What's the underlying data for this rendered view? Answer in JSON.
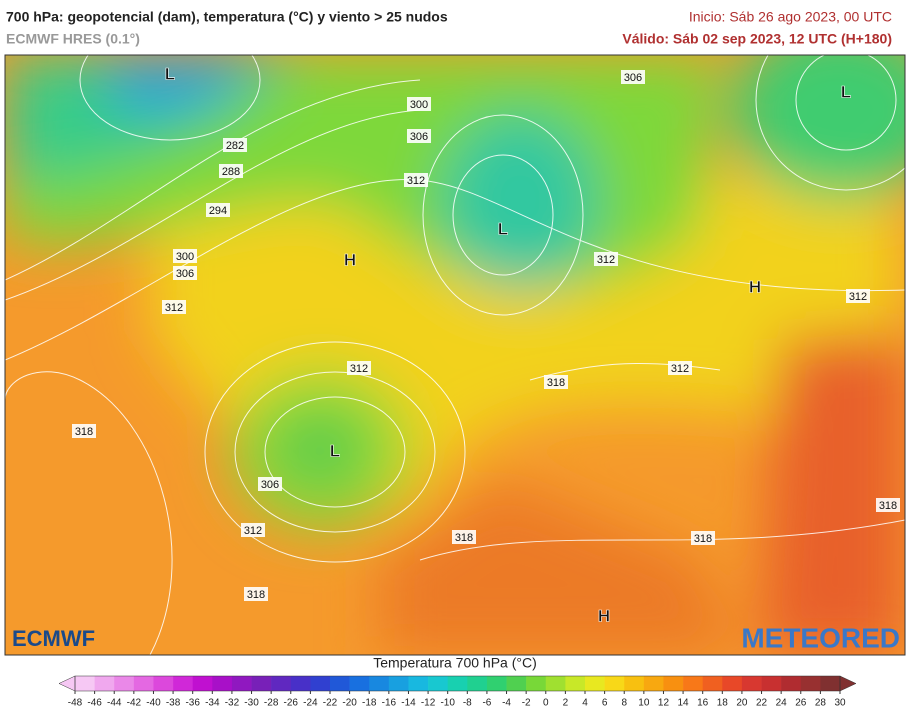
{
  "header": {
    "title": "700 hPa: geopotencial (dam), temperatura (°C) y viento > 25 nudos",
    "model": "ECMWF HRES (0.1°)",
    "init": "Inicio: Sáb 26 ago 2023, 00 UTC",
    "valid": "Válido: Sáb 02 sep 2023, 12 UTC (H+180)"
  },
  "map": {
    "contour_labels": [
      300,
      306,
      282,
      288,
      294,
      300,
      306,
      312,
      312,
      306,
      312,
      312,
      318,
      312,
      312,
      318,
      306,
      312,
      318,
      318,
      318,
      318
    ],
    "pressure_centers": [
      "L",
      "L",
      "L",
      "H",
      "H",
      "L",
      "H"
    ],
    "logos": [
      "ECMWF",
      "METEORED"
    ]
  },
  "colorbar": {
    "title": "Temperatura 700 hPa (°C)",
    "ticks": [
      -48,
      -46,
      -44,
      -42,
      -40,
      -38,
      -36,
      -34,
      -32,
      -30,
      -28,
      -26,
      -24,
      -22,
      -20,
      -18,
      -16,
      -14,
      -12,
      -10,
      -8,
      -6,
      -4,
      -2,
      0,
      2,
      4,
      6,
      8,
      10,
      12,
      14,
      16,
      18,
      20,
      22,
      24,
      26,
      28,
      30
    ],
    "colors": [
      "#f6c8f4",
      "#f0a8ee",
      "#ea88e8",
      "#e468e2",
      "#dc48dc",
      "#d028d8",
      "#c010d0",
      "#a810c8",
      "#9018c0",
      "#7820b8",
      "#6028c0",
      "#4830c8",
      "#3040d0",
      "#2058d8",
      "#1870e0",
      "#1888e0",
      "#18a0e0",
      "#18b8e0",
      "#18c8d0",
      "#18d0b0",
      "#20d090",
      "#30d070",
      "#50d050",
      "#78d838",
      "#a0e030",
      "#c8e828",
      "#e8e820",
      "#f8d818",
      "#f8c010",
      "#f8a810",
      "#f89010",
      "#f87818",
      "#f06020",
      "#e84828",
      "#d83830",
      "#c83030",
      "#b02c30",
      "#983030",
      "#803030"
    ]
  }
}
